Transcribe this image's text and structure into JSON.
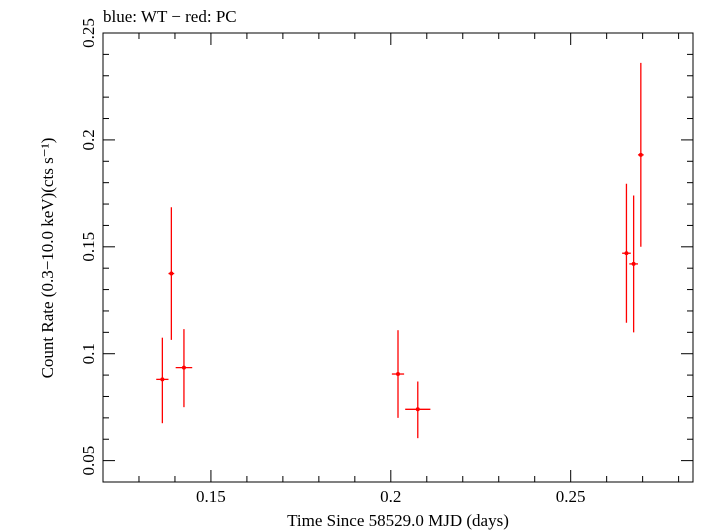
{
  "title_text": "blue: WT − red: PC",
  "chart_data": {
    "type": "scatter",
    "title": "blue: WT − red: PC",
    "xlabel": "Time Since 58529.0 MJD (days)",
    "ylabel": "Count Rate (0.3−10.0 keV)(cts s⁻¹)",
    "xlim": [
      0.12,
      0.284
    ],
    "ylim": [
      0.04,
      0.25
    ],
    "xticks": [
      {
        "value": 0.15,
        "label": "0.15"
      },
      {
        "value": 0.2,
        "label": "0.2"
      },
      {
        "value": 0.25,
        "label": "0.25"
      }
    ],
    "yticks": [
      {
        "value": 0.05,
        "label": "0.05"
      },
      {
        "value": 0.1,
        "label": "0.1"
      },
      {
        "value": 0.15,
        "label": "0.15"
      },
      {
        "value": 0.2,
        "label": "0.2"
      },
      {
        "value": 0.25,
        "label": "0.25"
      }
    ],
    "series": [
      {
        "name": "PC",
        "color": "#ff0000",
        "points": [
          {
            "x": 0.1365,
            "xerr": 0.0017,
            "y": 0.088,
            "yerr": [
              0.0205,
              0.0195
            ]
          },
          {
            "x": 0.139,
            "xerr": 0.0008,
            "y": 0.1375,
            "yerr": [
              0.031,
              0.031
            ]
          },
          {
            "x": 0.1425,
            "xerr": 0.0023,
            "y": 0.0935,
            "yerr": [
              0.0185,
              0.018
            ]
          },
          {
            "x": 0.202,
            "xerr": 0.0017,
            "y": 0.0905,
            "yerr": [
              0.0205,
              0.0205
            ]
          },
          {
            "x": 0.2075,
            "xerr": 0.0035,
            "y": 0.074,
            "yerr": [
              0.0135,
              0.013
            ]
          },
          {
            "x": 0.2655,
            "xerr": 0.0012,
            "y": 0.147,
            "yerr": [
              0.0325,
              0.0325
            ]
          },
          {
            "x": 0.2675,
            "xerr": 0.0012,
            "y": 0.142,
            "yerr": [
              0.032,
              0.032
            ]
          },
          {
            "x": 0.2695,
            "xerr": 0.0008,
            "y": 0.193,
            "yerr": [
              0.043,
              0.043
            ]
          }
        ]
      }
    ]
  }
}
